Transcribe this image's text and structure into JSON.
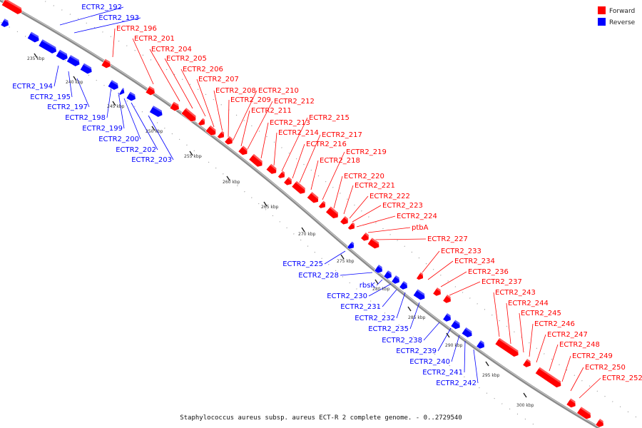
{
  "caption": "Staphylococcus aureus subsp. aureus ECT-R 2 complete genome. - 0..2729540",
  "legend": [
    {
      "label": "Forward",
      "color": "#ff0000"
    },
    {
      "label": "Reverse",
      "color": "#0000ff"
    }
  ],
  "colors": {
    "forward": "#ff0000",
    "reverse": "#0000ff",
    "backbone": "#808080"
  },
  "ticks": [
    "235 kbp",
    "240 kbp",
    "245 kbp",
    "250 kbp",
    "255 kbp",
    "260 kbp",
    "265 kbp",
    "270 kbp",
    "275 kbp",
    "280 kbp",
    "285 kbp",
    "290 kbp",
    "295 kbp",
    "300 kbp"
  ],
  "forward_labels": [
    "ECTR2_196",
    "ECTR2_201",
    "ECTR2_204",
    "ECTR2_205",
    "ECTR2_206",
    "ECTR2_207",
    "ECTR2_208",
    "ECTR2_209",
    "ECTR2_210",
    "ECTR2_211",
    "ECTR2_212",
    "ECTR2_213",
    "ECTR2_214",
    "ECTR2_215",
    "ECTR2_216",
    "ECTR2_217",
    "ECTR2_218",
    "ECTR2_219",
    "ECTR2_220",
    "ECTR2_221",
    "ECTR2_222",
    "ECTR2_223",
    "ECTR2_224",
    "ptbA",
    "ECTR2_227",
    "ECTR2_233",
    "ECTR2_234",
    "ECTR2_236",
    "ECTR2_237",
    "ECTR2_243",
    "ECTR2_244",
    "ECTR2_245",
    "ECTR2_246",
    "ECTR2_247",
    "ECTR2_248",
    "ECTR2_249",
    "ECTR2_250",
    "ECTR2_252"
  ],
  "reverse_labels": [
    "ECTR2_192",
    "ECTR2_193",
    "ECTR2_194",
    "ECTR2_195",
    "ECTR2_197",
    "ECTR2_198",
    "ECTR2_199",
    "ECTR2_200",
    "ECTR2_202",
    "ECTR2_203",
    "ECTR2_225",
    "ECTR2_228",
    "rbsK",
    "ECTR2_230",
    "ECTR2_231",
    "ECTR2_232",
    "ECTR2_235",
    "ECTR2_238",
    "ECTR2_239",
    "ECTR2_240",
    "ECTR2_241",
    "ECTR2_242"
  ]
}
